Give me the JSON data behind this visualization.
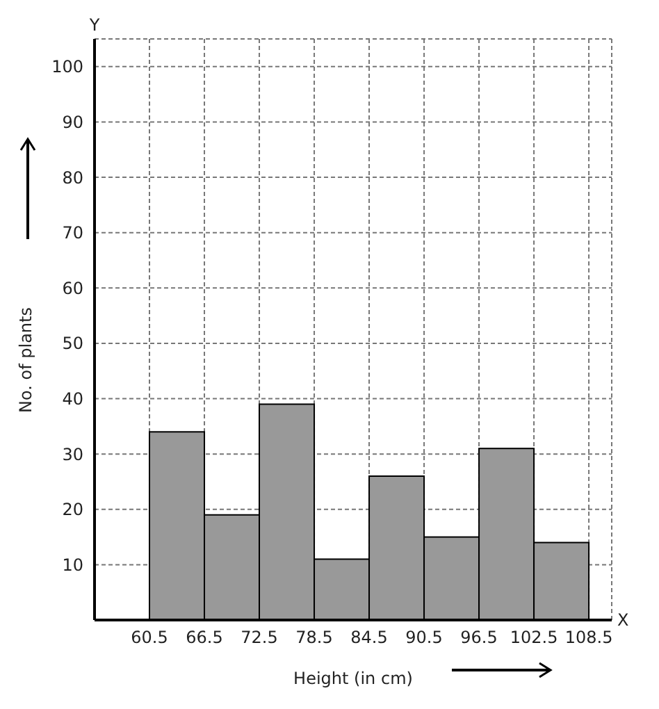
{
  "chart_data": {
    "type": "histogram",
    "xlabel": "Height (in cm)",
    "ylabel": "No. of plants",
    "bins": [
      60.5,
      66.5,
      72.5,
      78.5,
      84.5,
      90.5,
      96.5,
      102.5,
      108.5
    ],
    "values": [
      34,
      19,
      39,
      11,
      26,
      15,
      31,
      14
    ],
    "color": "#999999",
    "xlim": [
      54.5,
      111
    ],
    "xticks": [
      60.5,
      66.5,
      72.5,
      78.5,
      84.5,
      90.5,
      96.5,
      102.5,
      108.5
    ],
    "ylim": [
      0,
      105
    ],
    "yticks": [
      {
        "value": 0,
        "label": null
      },
      10,
      20,
      30,
      40,
      50,
      60,
      70,
      80,
      90,
      100
    ],
    "grid": true,
    "annotations": [
      "X",
      "Y"
    ]
  }
}
